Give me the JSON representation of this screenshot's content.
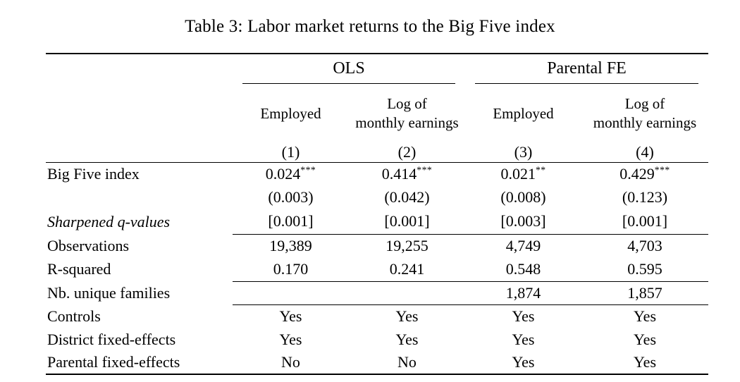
{
  "page": {
    "title": "Table 3: Labor market returns to the Big Five index"
  },
  "table": {
    "groups": [
      {
        "label": "OLS"
      },
      {
        "label": "Parental FE"
      }
    ],
    "columns": [
      {
        "line1": "Employed",
        "line2": "",
        "number": "(1)"
      },
      {
        "line1": "Log of",
        "line2": "monthly earnings",
        "number": "(2)"
      },
      {
        "line1": "Employed",
        "line2": "",
        "number": "(3)"
      },
      {
        "line1": "Log of",
        "line2": "monthly earnings",
        "number": "(4)"
      }
    ],
    "rows": [
      {
        "label": "Big Five index",
        "cells": [
          {
            "v": "0.024",
            "s": "***"
          },
          {
            "v": "0.414",
            "s": "***"
          },
          {
            "v": "0.021",
            "s": "**"
          },
          {
            "v": "0.429",
            "s": "***"
          }
        ]
      },
      {
        "label": "",
        "cells": [
          {
            "v": "(0.003)"
          },
          {
            "v": "(0.042)"
          },
          {
            "v": "(0.008)"
          },
          {
            "v": "(0.123)"
          }
        ]
      },
      {
        "label": "Sharpened q-values",
        "cells": [
          {
            "v": "[0.001]"
          },
          {
            "v": "[0.001]"
          },
          {
            "v": "[0.003]"
          },
          {
            "v": "[0.001]"
          }
        ]
      },
      {
        "label": "Observations",
        "cells": [
          {
            "v": "19,389"
          },
          {
            "v": "19,255"
          },
          {
            "v": "4,749"
          },
          {
            "v": "4,703"
          }
        ]
      },
      {
        "label": "R-squared",
        "cells": [
          {
            "v": "0.170"
          },
          {
            "v": "0.241"
          },
          {
            "v": "0.548"
          },
          {
            "v": "0.595"
          }
        ]
      },
      {
        "label": "Nb. unique families",
        "cells": [
          {
            "v": ""
          },
          {
            "v": ""
          },
          {
            "v": "1,874"
          },
          {
            "v": "1,857"
          }
        ]
      },
      {
        "label": "Controls",
        "cells": [
          {
            "v": "Yes"
          },
          {
            "v": "Yes"
          },
          {
            "v": "Yes"
          },
          {
            "v": "Yes"
          }
        ]
      },
      {
        "label": "District fixed-effects",
        "cells": [
          {
            "v": "Yes"
          },
          {
            "v": "Yes"
          },
          {
            "v": "Yes"
          },
          {
            "v": "Yes"
          }
        ]
      },
      {
        "label": "Parental fixed-effects",
        "cells": [
          {
            "v": "No"
          },
          {
            "v": "No"
          },
          {
            "v": "Yes"
          },
          {
            "v": "Yes"
          }
        ]
      }
    ]
  }
}
